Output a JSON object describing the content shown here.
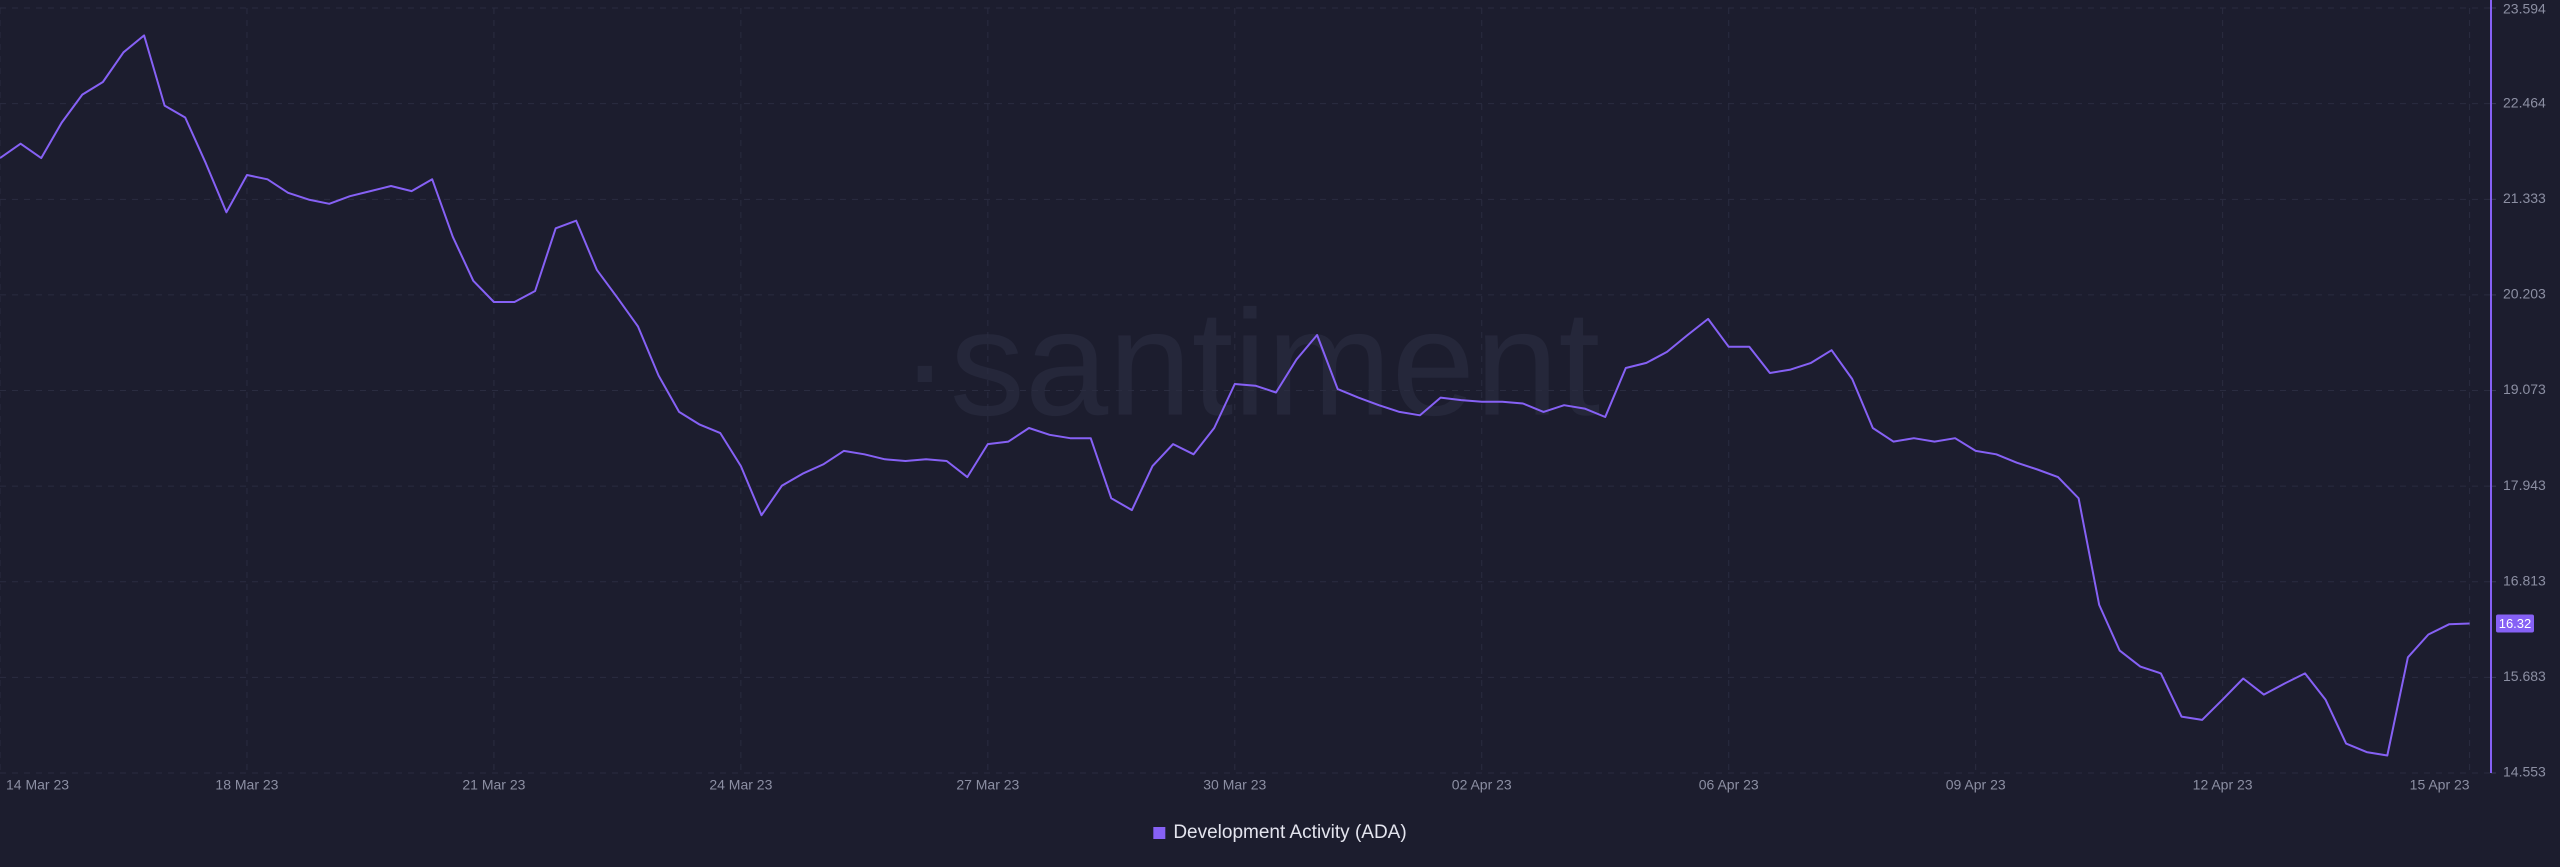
{
  "chart_data": {
    "type": "line",
    "watermark": "·santiment",
    "categories": [
      "14 Mar 23",
      null,
      null,
      null,
      null,
      null,
      null,
      null,
      null,
      null,
      null,
      null,
      "18 Mar 23",
      null,
      null,
      null,
      null,
      null,
      null,
      null,
      null,
      null,
      null,
      null,
      "21 Mar 23",
      null,
      null,
      null,
      null,
      null,
      null,
      null,
      null,
      null,
      null,
      null,
      "24 Mar 23",
      null,
      null,
      null,
      null,
      null,
      null,
      null,
      null,
      null,
      null,
      null,
      "27 Mar 23",
      null,
      null,
      null,
      null,
      null,
      null,
      null,
      null,
      null,
      null,
      null,
      "30 Mar 23",
      null,
      null,
      null,
      null,
      null,
      null,
      null,
      null,
      null,
      null,
      null,
      "02 Apr 23",
      null,
      null,
      null,
      null,
      null,
      null,
      null,
      null,
      null,
      null,
      null,
      "06 Apr 23",
      null,
      null,
      null,
      null,
      null,
      null,
      null,
      null,
      null,
      null,
      null,
      "09 Apr 23",
      null,
      null,
      null,
      null,
      null,
      null,
      null,
      null,
      null,
      null,
      null,
      "12 Apr 23",
      null,
      null,
      null,
      null,
      null,
      null,
      null,
      null,
      null,
      null,
      null,
      "15 Apr 23"
    ],
    "series": [
      {
        "name": "Development Activity (ADA)",
        "color": "#8661f5",
        "values": [
          21.82,
          21.99,
          21.82,
          22.24,
          22.57,
          22.72,
          23.07,
          23.27,
          22.44,
          22.3,
          21.76,
          21.18,
          21.62,
          21.57,
          21.41,
          21.33,
          21.28,
          21.37,
          21.43,
          21.49,
          21.43,
          21.57,
          20.89,
          20.37,
          20.12,
          20.12,
          20.25,
          20.99,
          21.08,
          20.5,
          20.17,
          19.83,
          19.25,
          18.82,
          18.67,
          18.57,
          18.18,
          17.6,
          17.95,
          18.09,
          18.2,
          18.36,
          18.32,
          18.26,
          18.24,
          18.26,
          18.24,
          18.05,
          18.44,
          18.47,
          18.63,
          18.55,
          18.51,
          18.51,
          17.8,
          17.66,
          18.18,
          18.44,
          18.32,
          18.63,
          19.15,
          19.13,
          19.05,
          19.44,
          19.73,
          19.09,
          18.99,
          18.9,
          18.82,
          18.78,
          18.99,
          18.96,
          18.94,
          18.94,
          18.92,
          18.82,
          18.9,
          18.86,
          18.76,
          19.34,
          19.4,
          19.53,
          19.73,
          19.92,
          19.59,
          19.59,
          19.28,
          19.32,
          19.4,
          19.55,
          19.21,
          18.63,
          18.47,
          18.51,
          18.47,
          18.51,
          18.36,
          18.32,
          18.22,
          18.14,
          18.05,
          17.8,
          16.54,
          16.0,
          15.81,
          15.73,
          15.22,
          15.18,
          15.42,
          15.67,
          15.48,
          15.61,
          15.73,
          15.42,
          14.9,
          14.8,
          14.76,
          15.92,
          16.19,
          16.31,
          16.32
        ]
      }
    ],
    "current_value": 16.32,
    "ylim": [
      14.553,
      23.594
    ],
    "yticks": [
      14.553,
      15.683,
      16.813,
      17.943,
      19.073,
      20.203,
      21.333,
      22.464,
      23.594
    ],
    "grid": true,
    "legend": "bottom"
  }
}
